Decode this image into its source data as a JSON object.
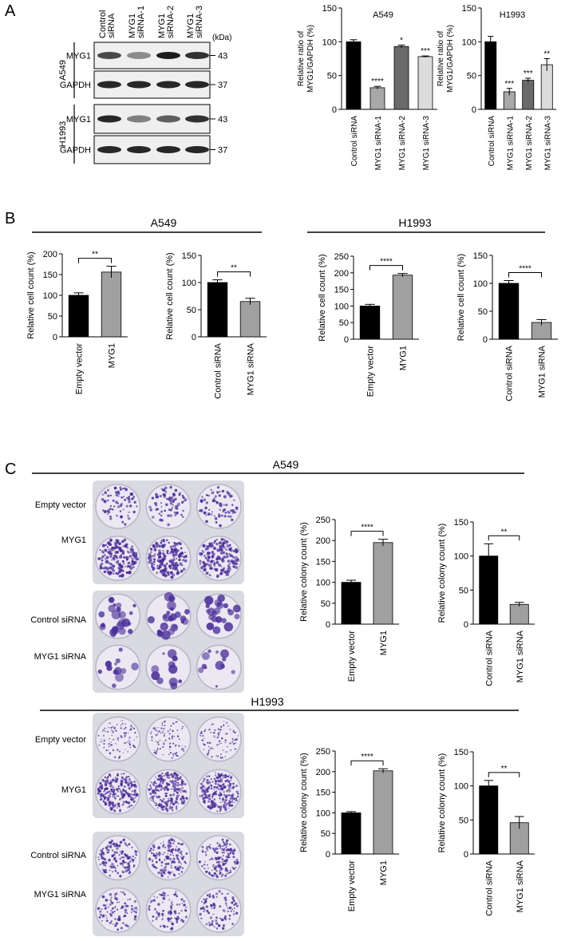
{
  "panel_labels": [
    "A",
    "B",
    "C"
  ],
  "western_blot": {
    "lanes": [
      [
        "Control",
        "siRNA"
      ],
      [
        "MYG1",
        "siRNA-1"
      ],
      [
        "MYG1",
        "siRNA-2"
      ],
      [
        "MYG1",
        "siRNA-3"
      ]
    ],
    "unit": "(kDa)",
    "blots": [
      {
        "cell_line": "A549",
        "rows": [
          {
            "protein": "MYG1",
            "kda": 43
          },
          {
            "protein": "GAPDH",
            "kda": 37
          }
        ]
      },
      {
        "cell_line": "H1993",
        "rows": [
          {
            "protein": "MYG1",
            "kda": 43
          },
          {
            "protein": "GAPDH",
            "kda": 37
          }
        ]
      }
    ]
  },
  "section_titles": {
    "B": [
      "A549",
      "H1993"
    ],
    "C": [
      "A549",
      "H1993"
    ]
  },
  "plates": [
    {
      "rows": [
        "Empty vector",
        "MYG1"
      ]
    },
    {
      "rows": [
        "Control siRNA",
        "MYG1 siRNA"
      ]
    },
    {
      "rows": [
        "Empty vector",
        "MYG1"
      ]
    },
    {
      "rows": [
        "Control siRNA",
        "MYG1 siRNA"
      ]
    }
  ],
  "chart_data": [
    {
      "type": "bar",
      "title": "A549",
      "y_label": [
        "Relative ratio of",
        "MYG1/GAPDH (%)"
      ],
      "categories": [
        "Control siRNA",
        "MYG1 siRNA-1",
        "MYG1 siRNA-2",
        "MYG1 siRNA-3"
      ],
      "values": [
        100,
        32,
        93,
        78
      ],
      "errors": [
        3,
        2,
        2,
        1
      ],
      "colors": [
        "#000000",
        "#a8a8a8",
        "#6a6a6a",
        "#dcdcdc"
      ],
      "annotations": [
        null,
        "****",
        "*",
        "***"
      ],
      "ylim": [
        0,
        150
      ],
      "yticks": [
        0,
        50,
        100,
        150
      ]
    },
    {
      "type": "bar",
      "title": "H1993",
      "y_label": [
        "Relative ratio of",
        "MYG1/GAPDH (%)"
      ],
      "categories": [
        "Control siRNA",
        "MYG1 siRNA-1",
        "MYG1 siRNA-2",
        "MYG1 siRNA-3"
      ],
      "values": [
        100,
        26,
        43,
        66
      ],
      "errors": [
        8,
        5,
        3,
        9
      ],
      "colors": [
        "#000000",
        "#a8a8a8",
        "#6a6a6a",
        "#dcdcdc"
      ],
      "annotations": [
        null,
        "***",
        "***",
        "**"
      ],
      "ylim": [
        0,
        150
      ],
      "yticks": [
        0,
        50,
        100,
        150
      ]
    },
    {
      "type": "bar",
      "y_label": [
        "Relative cell count (%)"
      ],
      "categories": [
        "Empty vector",
        "MYG1"
      ],
      "values": [
        100,
        156
      ],
      "errors": [
        6,
        14
      ],
      "colors": [
        "#000000",
        "#a0a0a0"
      ],
      "significance": "**",
      "ylim": [
        0,
        200
      ],
      "yticks": [
        0,
        50,
        100,
        150,
        200
      ]
    },
    {
      "type": "bar",
      "y_label": [
        "Relative cell count (%)"
      ],
      "categories": [
        "Control siRNA",
        "MYG1 siRNA"
      ],
      "values": [
        100,
        65
      ],
      "errors": [
        5,
        6
      ],
      "colors": [
        "#000000",
        "#a0a0a0"
      ],
      "significance": "**",
      "ylim": [
        0,
        150
      ],
      "yticks": [
        0,
        50,
        100,
        150
      ]
    },
    {
      "type": "bar",
      "y_label": [
        "Relative cell count (%)"
      ],
      "categories": [
        "Empty vector",
        "MYG1"
      ],
      "values": [
        100,
        193
      ],
      "errors": [
        5,
        5
      ],
      "colors": [
        "#000000",
        "#a0a0a0"
      ],
      "significance": "****",
      "ylim": [
        0,
        250
      ],
      "yticks": [
        0,
        50,
        100,
        150,
        200,
        250
      ]
    },
    {
      "type": "bar",
      "y_label": [
        "Relative cell count (%)"
      ],
      "categories": [
        "Control siRNA",
        "MYG1 siRNA"
      ],
      "values": [
        100,
        30
      ],
      "errors": [
        5,
        5
      ],
      "colors": [
        "#000000",
        "#a0a0a0"
      ],
      "significance": "****",
      "ylim": [
        0,
        150
      ],
      "yticks": [
        0,
        50,
        100,
        150
      ]
    },
    {
      "type": "bar",
      "y_label": [
        "Relative colony count (%)"
      ],
      "categories": [
        "Empty vector",
        "MYG1"
      ],
      "values": [
        100,
        195
      ],
      "errors": [
        5,
        8
      ],
      "colors": [
        "#000000",
        "#a0a0a0"
      ],
      "significance": "****",
      "ylim": [
        0,
        250
      ],
      "yticks": [
        0,
        50,
        100,
        150,
        200,
        250
      ]
    },
    {
      "type": "bar",
      "y_label": [
        "Relative colony count (%)"
      ],
      "categories": [
        "Control siRNA",
        "MYG1 siRNA"
      ],
      "values": [
        100,
        29
      ],
      "errors": [
        18,
        3
      ],
      "colors": [
        "#000000",
        "#a0a0a0"
      ],
      "significance": "**",
      "ylim": [
        0,
        150
      ],
      "yticks": [
        0,
        50,
        100,
        150
      ]
    },
    {
      "type": "bar",
      "y_label": [
        "Relative colony count (%)"
      ],
      "categories": [
        "Empty vector",
        "MYG1"
      ],
      "values": [
        100,
        202
      ],
      "errors": [
        3,
        5
      ],
      "colors": [
        "#000000",
        "#a0a0a0"
      ],
      "significance": "****",
      "ylim": [
        0,
        250
      ],
      "yticks": [
        0,
        50,
        100,
        150,
        200,
        250
      ]
    },
    {
      "type": "bar",
      "y_label": [
        "Relative colony count (%)"
      ],
      "categories": [
        "Control siRNA",
        "MYG1 siRNA"
      ],
      "values": [
        100,
        46
      ],
      "errors": [
        8,
        9
      ],
      "colors": [
        "#000000",
        "#a0a0a0"
      ],
      "significance": "**",
      "ylim": [
        0,
        150
      ],
      "yticks": [
        0,
        50,
        100,
        150
      ]
    }
  ]
}
